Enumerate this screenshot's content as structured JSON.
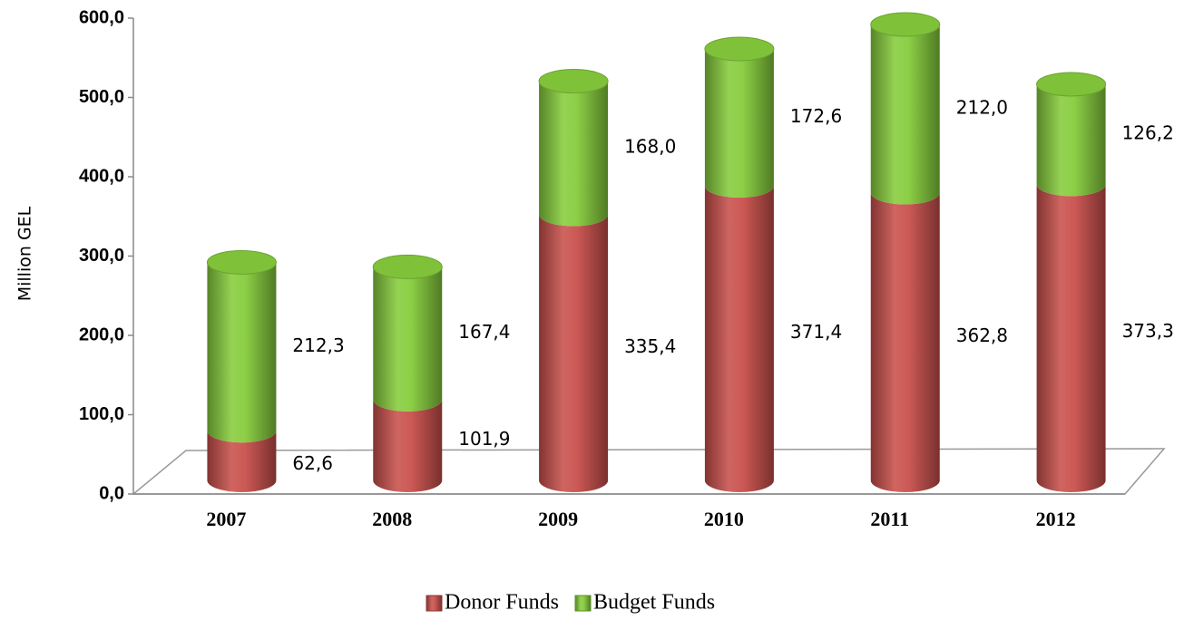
{
  "chart_data": {
    "type": "bar",
    "stacked": true,
    "y_label": "Million GEL",
    "categories": [
      "2007",
      "2008",
      "2009",
      "2010",
      "2011",
      "2012"
    ],
    "series": [
      {
        "name": "Donor Funds",
        "color": "#c9504c",
        "values": [
          62.6,
          101.9,
          335.4,
          371.4,
          362.8,
          373.3
        ],
        "value_labels": [
          "62,6",
          "101,9",
          "335,4",
          "371,4",
          "362,8",
          "373,3"
        ]
      },
      {
        "name": "Budget Funds",
        "color": "#86cc3c",
        "values": [
          212.3,
          167.4,
          168.0,
          172.6,
          212.0,
          126.2
        ],
        "value_labels": [
          "212,3",
          "167,4",
          "168,0",
          "172,6",
          "212,0",
          "126,2"
        ]
      }
    ],
    "ylim": [
      0,
      600
    ],
    "yticks": [
      {
        "value": 0,
        "label": "0,0"
      },
      {
        "value": 100,
        "label": "100,0"
      },
      {
        "value": 200,
        "label": "200,0"
      },
      {
        "value": 300,
        "label": "300,0"
      },
      {
        "value": 400,
        "label": "400,0"
      },
      {
        "value": 500,
        "label": "500,0"
      },
      {
        "value": 600,
        "label": "600,0"
      }
    ],
    "legend": "bottom"
  }
}
